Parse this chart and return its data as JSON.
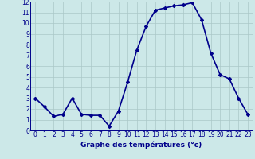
{
  "x": [
    0,
    1,
    2,
    3,
    4,
    5,
    6,
    7,
    8,
    9,
    10,
    11,
    12,
    13,
    14,
    15,
    16,
    17,
    18,
    19,
    20,
    21,
    22,
    23
  ],
  "y": [
    3.0,
    2.2,
    1.3,
    1.5,
    3.0,
    1.5,
    1.4,
    1.4,
    0.4,
    1.8,
    4.5,
    7.5,
    9.7,
    11.2,
    11.4,
    11.6,
    11.7,
    11.9,
    10.3,
    7.2,
    5.2,
    4.8,
    3.0,
    1.5
  ],
  "line_color": "#00008B",
  "marker": "D",
  "marker_size": 2,
  "bg_color": "#cce8e8",
  "grid_color": "#aac8c8",
  "xlabel": "Graphe des températures (°c)",
  "xlim": [
    -0.5,
    23.5
  ],
  "ylim": [
    0,
    12
  ],
  "yticks": [
    0,
    1,
    2,
    3,
    4,
    5,
    6,
    7,
    8,
    9,
    10,
    11,
    12
  ],
  "xticks": [
    0,
    1,
    2,
    3,
    4,
    5,
    6,
    7,
    8,
    9,
    10,
    11,
    12,
    13,
    14,
    15,
    16,
    17,
    18,
    19,
    20,
    21,
    22,
    23
  ],
  "xlabel_fontsize": 6.5,
  "tick_fontsize": 5.5,
  "line_width": 1.2
}
